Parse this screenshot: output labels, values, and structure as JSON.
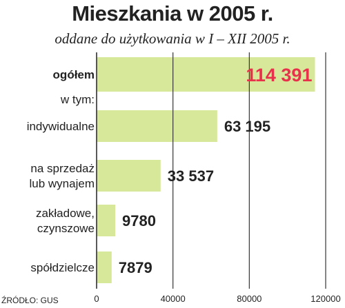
{
  "chart_data": {
    "type": "bar",
    "orientation": "horizontal",
    "title": "Mieszkania w 2005 r.",
    "subtitle": "oddane do użytkowania w I – XII 2005 r.",
    "source": "ŹRÓDŁO: GUS",
    "intermediate_label": "w tym:",
    "categories": [
      [
        "ogółem"
      ],
      [
        "indywidualne"
      ],
      [
        "na sprzedaż",
        "lub wynajem"
      ],
      [
        "zakładowe,",
        "czynszowe"
      ],
      [
        "spółdzielcze"
      ]
    ],
    "values": [
      114391,
      63195,
      33537,
      9780,
      7879
    ],
    "value_labels": [
      "114 391",
      "63 195",
      "33 537",
      "9780",
      "7879"
    ],
    "highlight_index": 0,
    "xlim": [
      0,
      120000
    ],
    "xticks": [
      0,
      40000,
      80000,
      120000
    ],
    "xtick_labels": [
      "0",
      "40000",
      "80000",
      "120000"
    ],
    "grid": true,
    "colors": {
      "bar": "#d8e89a",
      "highlight_text": "#e8314b",
      "grid": "#333333",
      "text": "#222222"
    }
  }
}
